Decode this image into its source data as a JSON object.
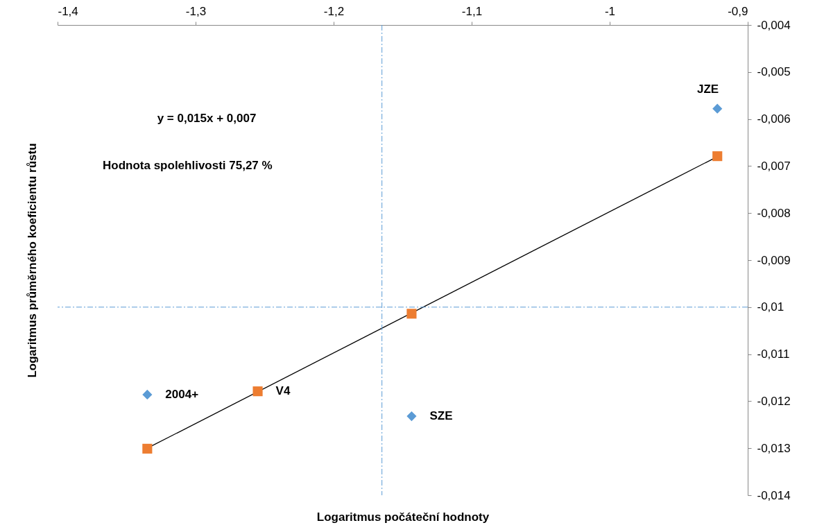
{
  "chart_data": {
    "type": "scatter",
    "xlabel": "Logaritmus počáteční hodnoty",
    "ylabel": "Logaritmus průměrného koeficientu růstu",
    "xlim": [
      -1.4,
      -0.9
    ],
    "xticks": [
      {
        "value": -1.4,
        "label": "-1,4"
      },
      {
        "value": -1.3,
        "label": "-1,3"
      },
      {
        "value": -1.2,
        "label": "-1,2"
      },
      {
        "value": -1.1,
        "label": "-1,1"
      },
      {
        "value": -1,
        "label": "-1"
      },
      {
        "value": -0.9,
        "label": "-0,9"
      }
    ],
    "ylim": [
      -0.014,
      -0.004
    ],
    "yticks": [
      {
        "value": -0.014,
        "label": "-0,014"
      },
      {
        "value": -0.013,
        "label": "-0,013"
      },
      {
        "value": -0.012,
        "label": "-0,012"
      },
      {
        "value": -0.011,
        "label": "-0,011"
      },
      {
        "value": -0.01,
        "label": "-0,01"
      },
      {
        "value": -0.009,
        "label": "-0,009"
      },
      {
        "value": -0.008,
        "label": "-0,008"
      },
      {
        "value": -0.007,
        "label": "-0,007"
      },
      {
        "value": -0.006,
        "label": "-0,006"
      },
      {
        "value": -0.005,
        "label": "-0,005"
      },
      {
        "value": -0.004,
        "label": "-0,004"
      }
    ],
    "grid": false,
    "series": [
      {
        "marker": "diamond",
        "color": "#5b9bd5",
        "x": [
          -1.335,
          -1.255,
          -1.1435,
          -0.922
        ],
        "values": [
          -0.01186,
          null,
          -0.01232,
          -0.00578
        ]
      },
      {
        "marker": "square",
        "color": "#ed7d31",
        "x": [
          -1.335,
          -1.255,
          -1.1435,
          -0.922
        ],
        "values": [
          -0.01301,
          -0.01179,
          -0.01014,
          -0.00679
        ]
      },
      {
        "type": "line",
        "color": "#000000",
        "x": [
          -1.335,
          -0.922
        ],
        "values": [
          -0.013,
          -0.0068
        ]
      }
    ],
    "ref_lines": [
      {
        "axis": "x",
        "value": -1.165,
        "color": "#5b9bd5",
        "line_style": "dashdot"
      },
      {
        "axis": "y",
        "value": -0.01,
        "color": "#5b9bd5",
        "line_style": "dashdot"
      }
    ],
    "annotations": [
      "y = 0,015x + 0,007",
      "Hodnota spolehlivosti 75,27 %",
      {
        "text": "2004+",
        "x": -1.335,
        "y": -0.01186
      },
      {
        "text": "V4",
        "x": -1.255,
        "y": -0.01179
      },
      {
        "text": "SZE",
        "x": -1.1435,
        "y": -0.01232
      },
      {
        "text": "JZE",
        "x": -0.922,
        "y": -0.00578
      }
    ]
  }
}
